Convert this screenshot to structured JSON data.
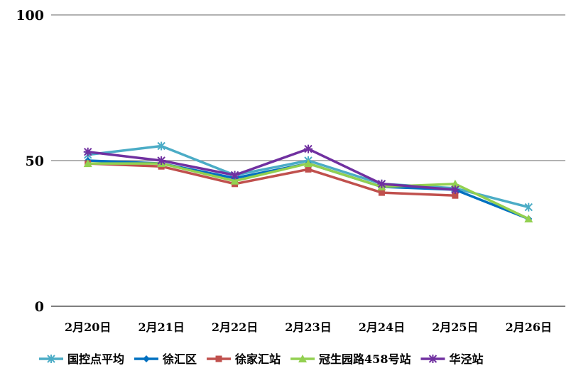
{
  "chart_data": {
    "type": "line",
    "title": "",
    "xlabel": "",
    "ylabel": "",
    "ylim": [
      0,
      100
    ],
    "yticks": [
      "0",
      "50",
      "100"
    ],
    "grid": true,
    "legend_position": "bottom",
    "categories": [
      "2月20日",
      "2月21日",
      "2月22日",
      "2月23日",
      "2月24日",
      "2月25日",
      "2月26日"
    ],
    "series": [
      {
        "name": "国控点平均",
        "color": "#4bacc6",
        "marker": "asterisk",
        "values": [
          52,
          55,
          45,
          50,
          42,
          40.5,
          34
        ]
      },
      {
        "name": "徐汇区",
        "color": "#0070c0",
        "marker": "diamond",
        "values": [
          50,
          49,
          44,
          49,
          41,
          40,
          30
        ]
      },
      {
        "name": "徐家汇站",
        "color": "#c0504d",
        "marker": "square",
        "values": [
          49,
          48,
          42,
          47,
          39,
          38,
          null
        ]
      },
      {
        "name": "冠生园路458号站",
        "color": "#92d050",
        "marker": "triangle",
        "values": [
          49,
          49,
          43,
          49,
          41,
          42,
          30
        ]
      },
      {
        "name": "华泾站",
        "color": "#7030a0",
        "marker": "x-star",
        "values": [
          53,
          50,
          45,
          54,
          42,
          40,
          null
        ]
      }
    ]
  }
}
